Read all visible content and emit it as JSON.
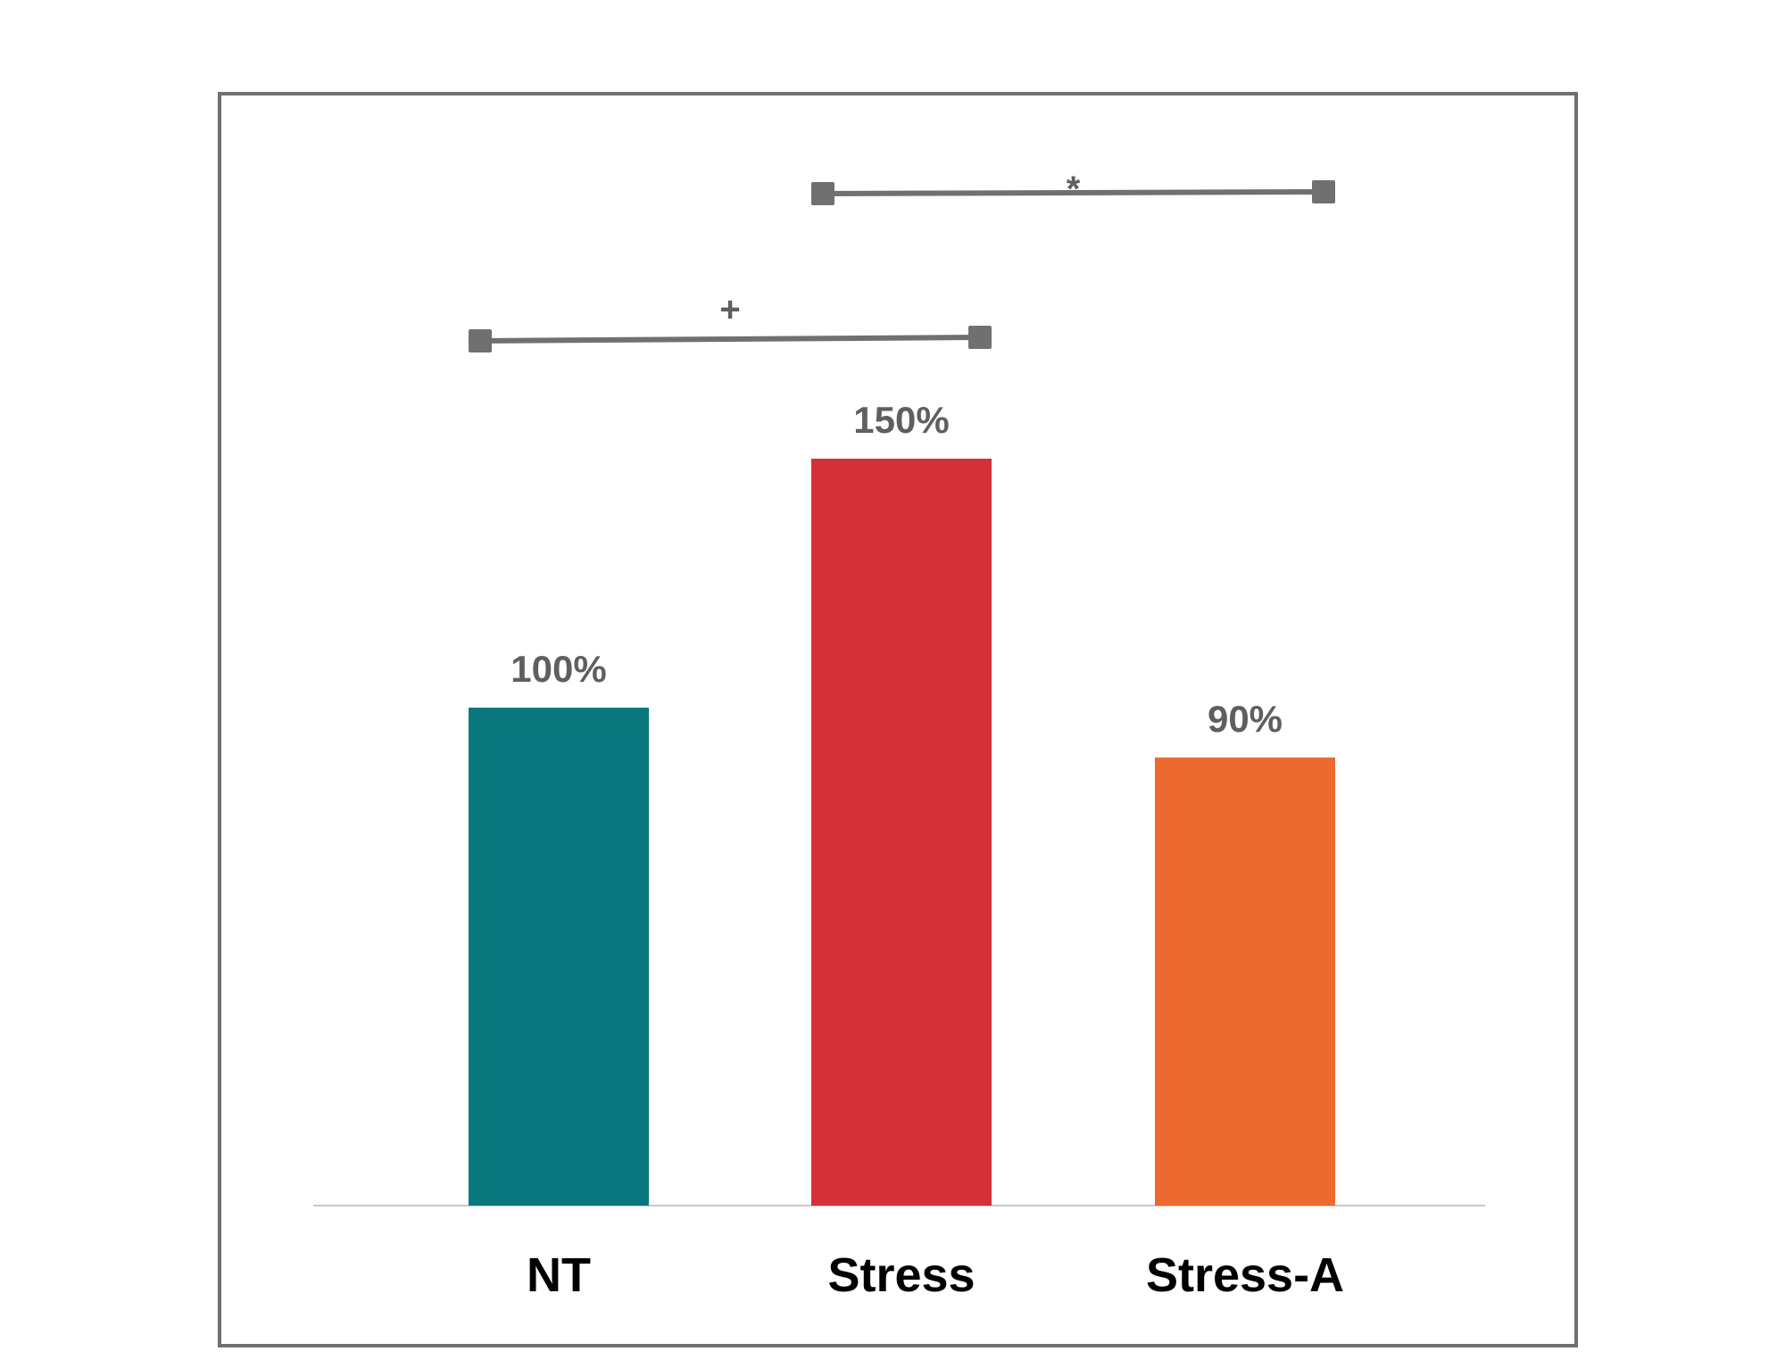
{
  "chart_data": {
    "type": "bar",
    "title": "",
    "xlabel": "",
    "ylabel": "",
    "ylim": [
      0,
      2.1
    ],
    "grid": false,
    "legend": "none",
    "categories": [
      "NT",
      "Stress",
      "Stress-A"
    ],
    "values": [
      1.0,
      1.5,
      0.9
    ],
    "data_labels": [
      "100%",
      "150%",
      "90%"
    ],
    "colors": [
      "#08777e",
      "#d53039",
      "#ec6930"
    ],
    "significance": [
      {
        "from": "NT",
        "to": "Stress",
        "symbol": "+"
      },
      {
        "from": "Stress",
        "to": "Stress-A",
        "symbol": "*"
      }
    ]
  }
}
